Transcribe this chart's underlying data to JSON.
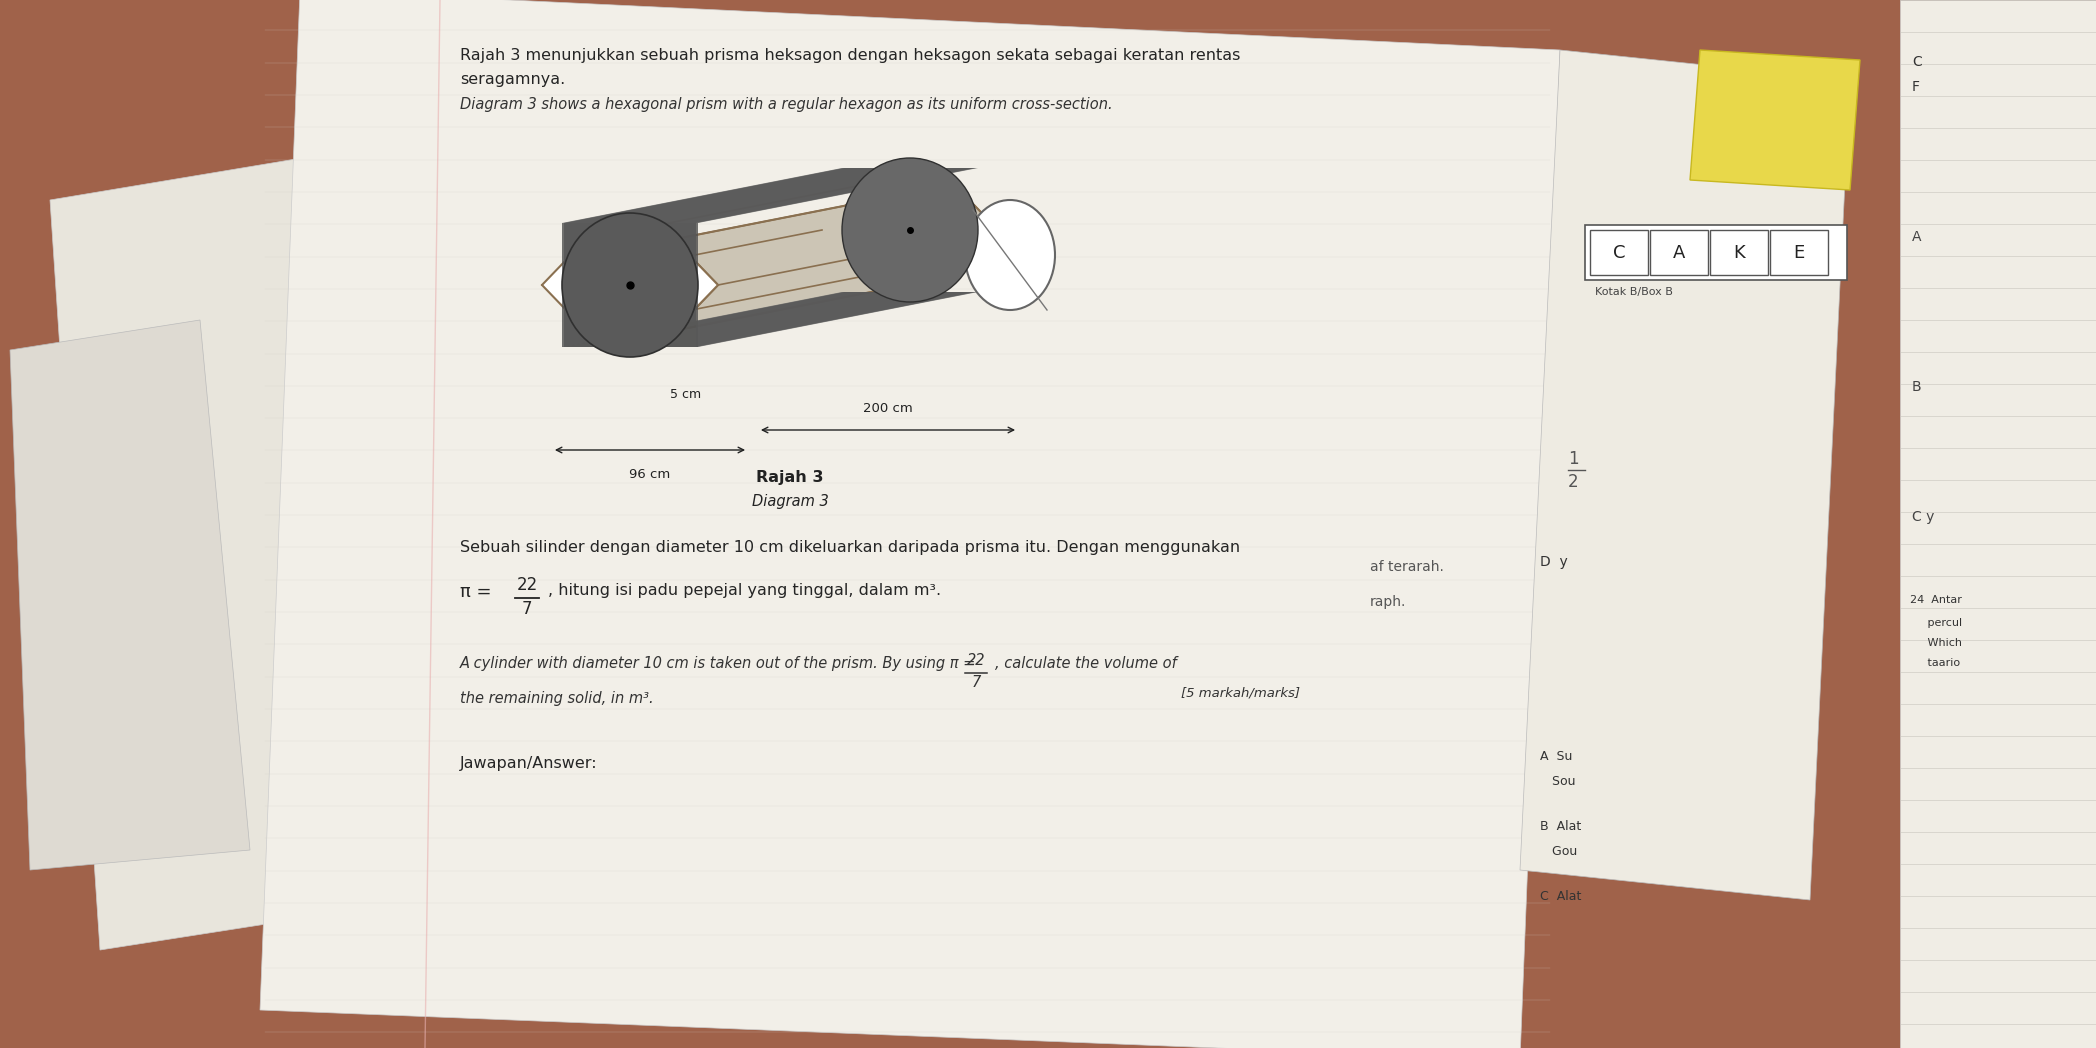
{
  "bg_color": "#a0624a",
  "paper_main_color": "#f2efe8",
  "paper_right_color": "#eeeae0",
  "paper_far_right_color": "#f0ede5",
  "yellow_color": "#e8d84a",
  "title_malay": "Rajah 3 menunjukkan sebuah prisma heksagon dengan heksagon sekata sebagai keratan rentas",
  "title_malay2": "seragamnya.",
  "title_english": "Diagram 3 shows a hexagonal prism with a regular hexagon as its uniform cross-section.",
  "diagram_label1": "Rajah 3",
  "diagram_label2": "Diagram 3",
  "dim_96": "96 cm",
  "dim_200": "200 cm",
  "dim_5": "5 cm",
  "question_malay": "Sebuah silinder dengan diameter 10 cm dikeluarkan daripada prisma itu. Dengan menggunakan",
  "pi_label": "π =",
  "frac_top": "22",
  "frac_bot": "7",
  "question_malay2": ", hitung isi padu pepejal yang tinggal, dalam m³.",
  "question_english1": "A cylinder with diameter 10 cm is taken out of the prism. By using π =",
  "frac_top2": "22",
  "frac_bot2": "7",
  "question_english2": ", calculate the volume of",
  "marks_text": "[5 markah/marks]",
  "remaining_text": "the remaining solid, in m³.",
  "answer_label": "Jawapan/Answer:",
  "side_text1": "af terarah.",
  "side_text2": "raph.",
  "box_letters": [
    "C",
    "A",
    "K",
    "E"
  ],
  "box_label": "Kotak B/Box B",
  "right_col_items": [
    "C\nF",
    "A",
    "B",
    "C y"
  ],
  "right_col_labels": [
    "D y",
    "24 Antar",
    "percul",
    "Which",
    "taario"
  ],
  "fraction_num_24": "1\n2"
}
